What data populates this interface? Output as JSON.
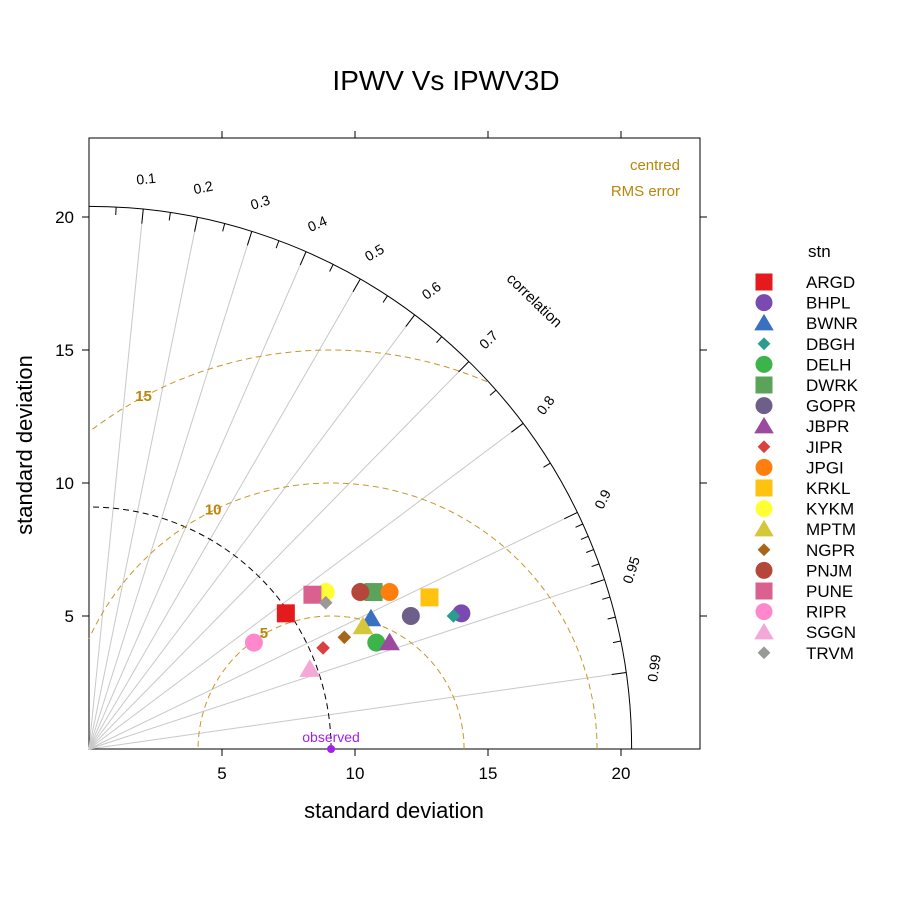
{
  "chart_data": {
    "type": "scatter",
    "subtype": "taylor-diagram",
    "title": "IPWV Vs IPWV3D",
    "xlabel": "standard deviation",
    "ylabel": "standard deviation",
    "xlim": [
      0,
      23
    ],
    "ylim": [
      0,
      23
    ],
    "x_ticks": [
      5,
      10,
      15,
      20
    ],
    "y_ticks": [
      5,
      10,
      15,
      20
    ],
    "max_sd": 20.4,
    "observed": {
      "label": "observed",
      "sd": 9.1,
      "color": "#a020f0"
    },
    "correlation_label": "correlation",
    "correlation_ticks": [
      {
        "r": 0.1,
        "label": "0.1"
      },
      {
        "r": 0.2,
        "label": "0.2"
      },
      {
        "r": 0.3,
        "label": "0.3"
      },
      {
        "r": 0.4,
        "label": "0.4"
      },
      {
        "r": 0.5,
        "label": "0.5"
      },
      {
        "r": 0.6,
        "label": "0.6"
      },
      {
        "r": 0.7,
        "label": "0.7"
      },
      {
        "r": 0.8,
        "label": "0.8"
      },
      {
        "r": 0.9,
        "label": "0.9"
      },
      {
        "r": 0.95,
        "label": "0.95"
      },
      {
        "r": 0.99,
        "label": "0.99"
      }
    ],
    "rms_contours": [
      {
        "value": 5,
        "label": "5"
      },
      {
        "value": 10,
        "label": "10"
      },
      {
        "value": 15,
        "label": "15"
      }
    ],
    "rms_label_line1": "centred",
    "rms_label_line2": "RMS error",
    "legend_title": "stn",
    "legend_position": "right",
    "series": [
      {
        "name": "ARGD",
        "shape": "square",
        "color": "#e41a1c",
        "x": 7.4,
        "y": 5.1
      },
      {
        "name": "BHPL",
        "shape": "circle",
        "color": "#7a4ab0",
        "x": 14.0,
        "y": 5.1
      },
      {
        "name": "BWNR",
        "shape": "triangle",
        "color": "#3a70c0",
        "x": 10.6,
        "y": 4.9
      },
      {
        "name": "DBGH",
        "shape": "diamond",
        "color": "#2a9d8f",
        "x": 13.7,
        "y": 5.0
      },
      {
        "name": "DELH",
        "shape": "circle",
        "color": "#3cb44b",
        "x": 10.8,
        "y": 4.0
      },
      {
        "name": "DWRK",
        "shape": "square",
        "color": "#5ba35b",
        "x": 10.7,
        "y": 5.9
      },
      {
        "name": "GOPR",
        "shape": "circle",
        "color": "#6e5f8a",
        "x": 12.1,
        "y": 5.0
      },
      {
        "name": "JBPR",
        "shape": "triangle",
        "color": "#9b4aa0",
        "x": 11.3,
        "y": 4.0
      },
      {
        "name": "JIPR",
        "shape": "diamond",
        "color": "#d94040",
        "x": 8.8,
        "y": 3.8
      },
      {
        "name": "JPGI",
        "shape": "circle",
        "color": "#ff7f0e",
        "x": 11.3,
        "y": 5.9
      },
      {
        "name": "KRKL",
        "shape": "square",
        "color": "#ffc20e",
        "x": 12.8,
        "y": 5.7
      },
      {
        "name": "KYKM",
        "shape": "circle",
        "color": "#ffff33",
        "x": 8.9,
        "y": 5.9
      },
      {
        "name": "MPTM",
        "shape": "triangle",
        "color": "#d4c83a",
        "x": 10.3,
        "y": 4.6
      },
      {
        "name": "NGPR",
        "shape": "diamond",
        "color": "#a6651a",
        "x": 9.6,
        "y": 4.2
      },
      {
        "name": "PNJM",
        "shape": "circle",
        "color": "#b5473a",
        "x": 10.2,
        "y": 5.9
      },
      {
        "name": "PUNE",
        "shape": "square",
        "color": "#d9608f",
        "x": 8.4,
        "y": 5.8
      },
      {
        "name": "RIPR",
        "shape": "circle",
        "color": "#ff88cc",
        "x": 6.2,
        "y": 4.0
      },
      {
        "name": "SGGN",
        "shape": "triangle",
        "color": "#f4a8d8",
        "x": 8.3,
        "y": 3.0
      },
      {
        "name": "TRVM",
        "shape": "diamond",
        "color": "#999999",
        "x": 8.9,
        "y": 5.5
      }
    ]
  }
}
